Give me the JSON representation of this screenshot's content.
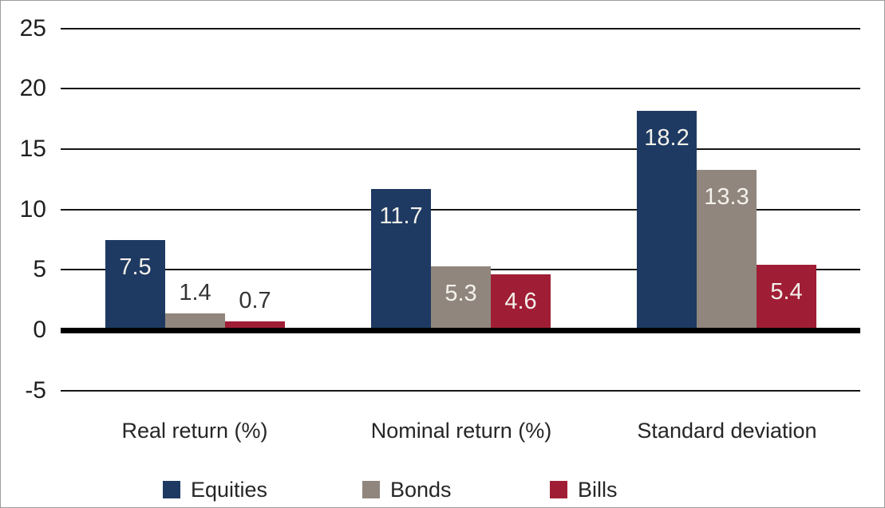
{
  "chart_data": {
    "type": "bar",
    "categories": [
      "Real return (%)",
      "Nominal return (%)",
      "Standard deviation"
    ],
    "series": [
      {
        "name": "Equities",
        "color": "#1e3a62",
        "values": [
          7.5,
          11.7,
          18.2
        ]
      },
      {
        "name": "Bonds",
        "color": "#90867d",
        "values": [
          1.4,
          5.3,
          13.3
        ]
      },
      {
        "name": "Bills",
        "color": "#a01e35",
        "values": [
          0.7,
          4.6,
          5.4
        ]
      }
    ],
    "value_labels": [
      "7.5",
      "1.4",
      "0.7",
      "11.7",
      "5.3",
      "4.6",
      "18.2",
      "13.3",
      "5.4"
    ],
    "y_ticks": [
      25,
      20,
      15,
      10,
      5,
      0,
      -5
    ],
    "ylim": [
      -7.5,
      27
    ],
    "grid": true,
    "legend_position": "bottom",
    "title": "",
    "xlabel": "",
    "ylabel": ""
  },
  "colors": {
    "background": "#ffffff",
    "frame_border": "#9c9c9c",
    "gridline": "#161616",
    "zero_line": "#000000",
    "tick_text": "#1f1f1f",
    "label_inside_bar": "#f4f1ec",
    "label_outside_bar": "#333333"
  }
}
